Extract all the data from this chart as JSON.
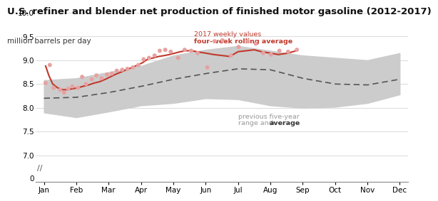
{
  "title": "U.S. refiner and blender net production of finished motor gasoline (2012-2017)",
  "ylabel": "million barrels per day",
  "months": [
    "Jan",
    "Feb",
    "Mar",
    "Apr",
    "May",
    "Jun",
    "Jul",
    "Aug",
    "Sep",
    "Oct",
    "Nov",
    "Dec"
  ],
  "ylim_main": [
    6.8,
    10.1
  ],
  "yticks_main": [
    7.0,
    7.5,
    8.0,
    8.5,
    9.0,
    9.5,
    10.0
  ],
  "five_year_avg": [
    8.2,
    8.22,
    8.32,
    8.45,
    8.6,
    8.72,
    8.82,
    8.8,
    8.62,
    8.5,
    8.48,
    8.6
  ],
  "five_year_min": [
    7.9,
    7.8,
    7.92,
    8.05,
    8.1,
    8.2,
    8.18,
    8.05,
    8.0,
    8.02,
    8.1,
    8.28
  ],
  "five_year_max": [
    8.58,
    8.62,
    8.75,
    8.88,
    9.1,
    9.22,
    9.3,
    9.2,
    9.1,
    9.05,
    9.0,
    9.15
  ],
  "rolling_avg_x": [
    0.05,
    0.15,
    0.27,
    0.42,
    0.58,
    0.73,
    0.88,
    1.05,
    1.2,
    1.38,
    1.55,
    1.73,
    1.9,
    2.05,
    2.2,
    2.38,
    2.55,
    2.73,
    2.9,
    3.05,
    3.2,
    3.38,
    3.55,
    3.73,
    3.88,
    4.05,
    4.22,
    4.4,
    4.58,
    4.73,
    5.0,
    5.25,
    5.5,
    5.75,
    6.0,
    6.25,
    6.5,
    6.73,
    7.0,
    7.25,
    7.55,
    7.8
  ],
  "rolling_avg_y": [
    8.88,
    8.68,
    8.5,
    8.42,
    8.38,
    8.38,
    8.4,
    8.42,
    8.45,
    8.48,
    8.52,
    8.55,
    8.6,
    8.65,
    8.7,
    8.75,
    8.8,
    8.85,
    8.9,
    8.95,
    9.02,
    9.05,
    9.08,
    9.1,
    9.12,
    9.15,
    9.18,
    9.2,
    9.2,
    9.18,
    9.15,
    9.12,
    9.1,
    9.08,
    9.18,
    9.2,
    9.22,
    9.18,
    9.15,
    9.12,
    9.15,
    9.2
  ],
  "weekly_x": [
    0.05,
    0.18,
    0.3,
    0.5,
    0.62,
    0.75,
    0.88,
    1.05,
    1.18,
    1.3,
    1.48,
    1.62,
    1.78,
    1.95,
    2.1,
    2.25,
    2.42,
    2.58,
    2.75,
    2.92,
    3.08,
    3.25,
    3.42,
    3.58,
    3.75,
    3.92,
    4.15,
    4.35,
    4.55,
    4.75,
    5.05,
    5.28,
    5.52,
    5.78,
    6.02,
    6.3,
    6.55,
    6.78,
    7.02,
    7.28,
    7.55,
    7.82
  ],
  "weekly_y": [
    8.52,
    8.9,
    8.42,
    8.38,
    8.32,
    8.4,
    8.45,
    8.42,
    8.65,
    8.5,
    8.6,
    8.68,
    8.62,
    8.7,
    8.72,
    8.78,
    8.8,
    8.82,
    8.85,
    8.9,
    9.02,
    9.05,
    9.1,
    9.2,
    9.22,
    9.18,
    9.05,
    9.22,
    9.2,
    9.15,
    8.85,
    9.4,
    9.42,
    9.1,
    9.28,
    9.4,
    9.35,
    9.15,
    9.12,
    9.2,
    9.18,
    9.22
  ],
  "bg_color": "#ffffff",
  "fill_color": "#cccccc",
  "avg_line_color": "#555555",
  "rolling_line_color": "#c0392b",
  "weekly_dot_color": "#e8a0a0",
  "annotation_color_gray": "#999999",
  "annotation_color_red": "#c0392b",
  "title_fontsize": 9.5,
  "axis_label_fontsize": 7.5,
  "tick_fontsize": 7.5
}
